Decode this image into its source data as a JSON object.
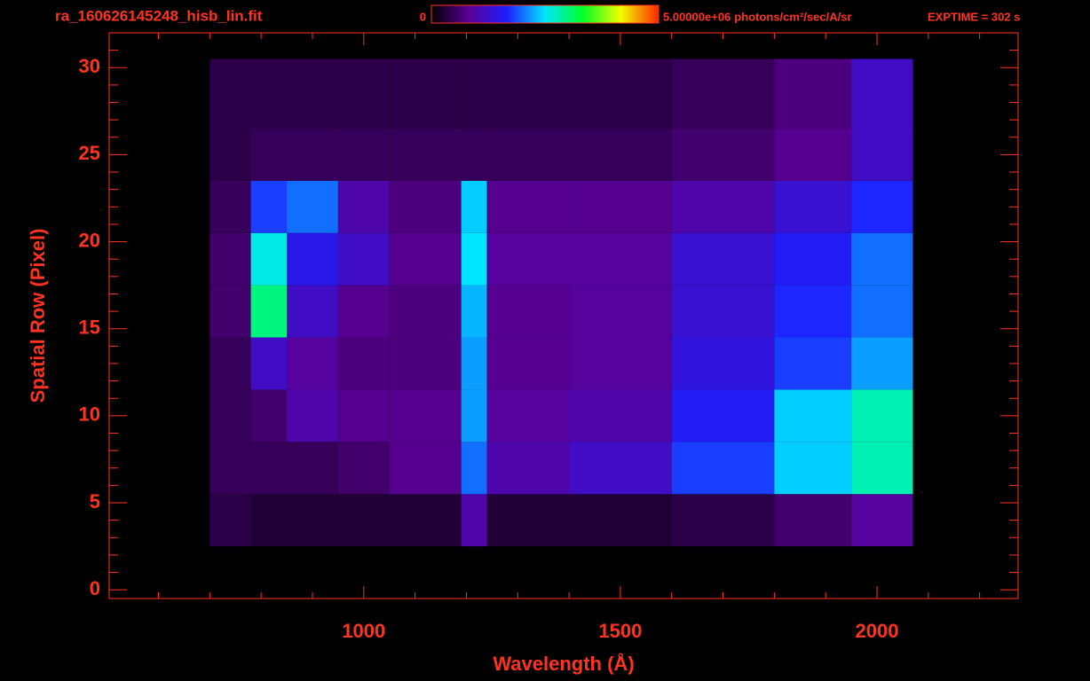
{
  "chart_data": {
    "type": "heatmap",
    "title": "ra_160626145248_hisb_lin.fit",
    "colorbar": {
      "ticks": [
        0,
        {
          "value": 5000000,
          "label": "5.00000e+06"
        }
      ],
      "unit": "photons/cm²/sec/A/sr",
      "colormap": [
        "#000000",
        "#5a0096",
        "#1e1eff",
        "#00e6ff",
        "#00ff28",
        "#f0ff00",
        "#ff2800"
      ]
    },
    "annotation": "EXPTIME = 302 s",
    "xlabel": "Wavelength (Å)",
    "ylabel": "Spatial Row (Pixel)",
    "color": "#ff3322",
    "xlim": [
      504,
      2275
    ],
    "ylim": [
      -0.5,
      32
    ],
    "xticks": [
      1000,
      1500,
      2000
    ],
    "xminor": [
      600,
      700,
      800,
      900,
      1100,
      1200,
      1300,
      1400,
      1600,
      1700,
      1800,
      1900,
      2100,
      2200
    ],
    "yticks": [
      0,
      5,
      10,
      15,
      20,
      25,
      30
    ],
    "yminor": [
      1,
      2,
      3,
      4,
      6,
      7,
      8,
      9,
      11,
      12,
      13,
      14,
      16,
      17,
      18,
      19,
      21,
      22,
      23,
      24,
      26,
      27,
      28,
      29,
      31
    ],
    "xedges": [
      700,
      780,
      850,
      950,
      1050,
      1190,
      1240,
      1400,
      1600,
      1800,
      1950,
      2070
    ],
    "yedges": [
      2.5,
      5.5,
      8.5,
      11.5,
      14.5,
      17.5,
      20.5,
      23.5,
      26.5,
      30.5
    ],
    "z": [
      [
        400000,
        300000,
        300000,
        300000,
        300000,
        1000000,
        300000,
        300000,
        400000,
        600000,
        900000
      ],
      [
        500000,
        500000,
        500000,
        600000,
        800000,
        2000000,
        1000000,
        1200000,
        1800000,
        2400000,
        2800000
      ],
      [
        500000,
        600000,
        1000000,
        800000,
        800000,
        2200000,
        900000,
        1000000,
        1600000,
        2400000,
        2800000
      ],
      [
        500000,
        1200000,
        900000,
        700000,
        700000,
        2200000,
        800000,
        900000,
        1400000,
        1800000,
        2200000
      ],
      [
        600000,
        3000000,
        1200000,
        800000,
        700000,
        2300000,
        800000,
        900000,
        1300000,
        1700000,
        2000000
      ],
      [
        600000,
        2600000,
        1500000,
        1200000,
        800000,
        2500000,
        900000,
        900000,
        1300000,
        1600000,
        2000000
      ],
      [
        500000,
        1800000,
        2000000,
        1000000,
        700000,
        2400000,
        800000,
        800000,
        1000000,
        1300000,
        1700000
      ],
      [
        400000,
        500000,
        500000,
        500000,
        500000,
        500000,
        500000,
        500000,
        600000,
        800000,
        1200000
      ],
      [
        400000,
        400000,
        400000,
        400000,
        400000,
        400000,
        400000,
        400000,
        500000,
        700000,
        1200000
      ]
    ]
  }
}
